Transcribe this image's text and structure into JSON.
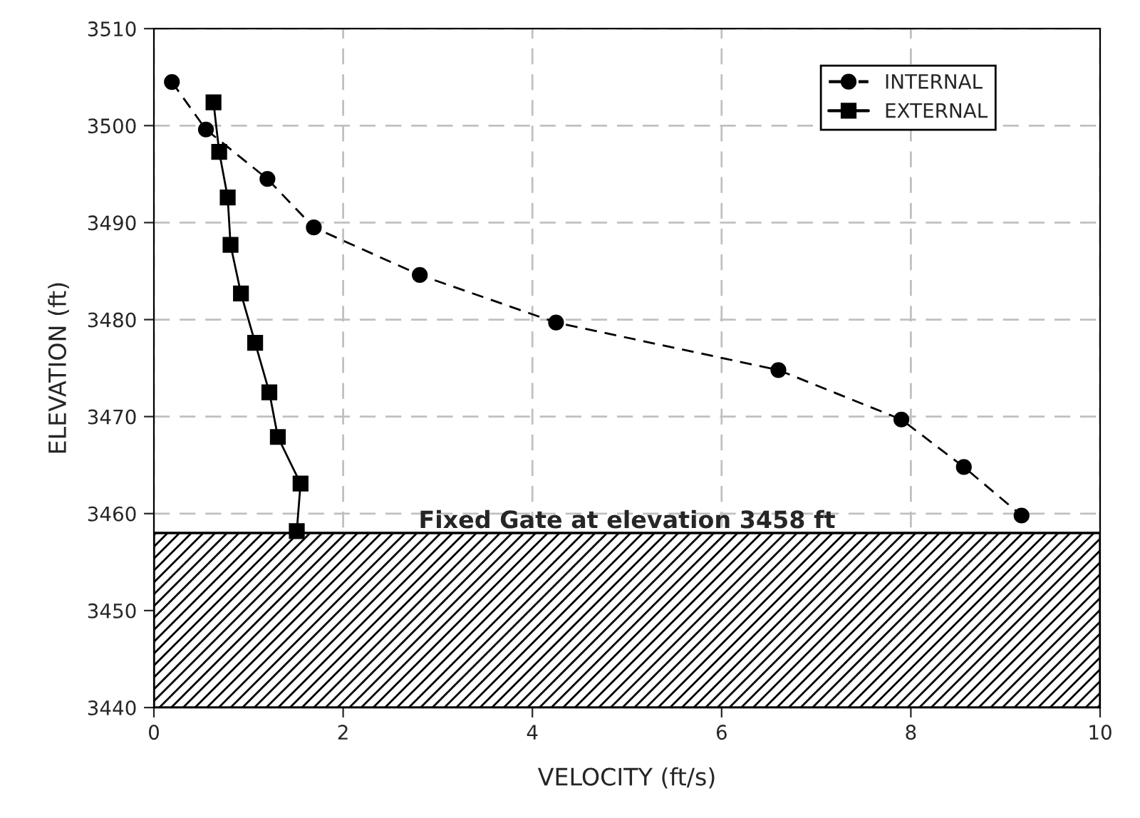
{
  "chart_data": {
    "type": "line",
    "xlabel": "VELOCITY (ft/s)",
    "ylabel": "ELEVATION (ft)",
    "xlim": [
      0,
      10
    ],
    "xticks": [
      0,
      2,
      4,
      6,
      8,
      10
    ],
    "ylim": [
      3440,
      3510
    ],
    "yticks": [
      3440,
      3450,
      3460,
      3470,
      3480,
      3490,
      3500,
      3510
    ],
    "grid": true,
    "legend": "top right",
    "series": [
      {
        "name": "INTERNAL",
        "color": "#000000",
        "marker": "circle",
        "line_style": "dashed",
        "x": [
          0.19,
          0.55,
          1.2,
          1.69,
          2.81,
          4.25,
          6.6,
          7.9,
          8.56,
          9.17
        ],
        "values": [
          3504.5,
          3499.6,
          3494.5,
          3489.5,
          3484.6,
          3479.7,
          3474.8,
          3469.7,
          3464.8,
          3459.8
        ]
      },
      {
        "name": "EXTERNAL",
        "color": "#000000",
        "marker": "square",
        "line_style": "solid",
        "x": [
          0.63,
          0.69,
          0.78,
          0.81,
          0.92,
          1.07,
          1.22,
          1.31,
          1.55,
          1.51
        ],
        "values": [
          3502.4,
          3497.3,
          3492.6,
          3487.7,
          3482.7,
          3477.6,
          3472.5,
          3467.9,
          3463.1,
          3458.2
        ]
      }
    ],
    "bands": [
      {
        "axis": "y",
        "from": 3440,
        "to": 3458,
        "label": "Fixed Gate at elevation 3458 ft",
        "color": "#000000"
      }
    ]
  }
}
